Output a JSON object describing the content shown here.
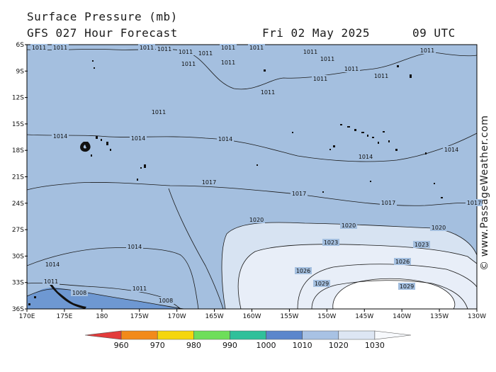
{
  "header": {
    "title": "Surface Pressure (mb)",
    "forecast": "GFS 027 Hour Forecast",
    "date": "Fri 02 May 2025",
    "time": "09 UTC"
  },
  "watermark": "© www.PassageWeather.com",
  "map": {
    "lat_labels": [
      "6S",
      "9S",
      "12S",
      "15S",
      "18S",
      "21S",
      "24S",
      "27S",
      "30S",
      "33S",
      "36S"
    ],
    "lon_labels": [
      "170E",
      "175E",
      "180",
      "175W",
      "170W",
      "165W",
      "160W",
      "155W",
      "150W",
      "145W",
      "140W",
      "135W",
      "130W"
    ],
    "isobars": [
      "1008",
      "1011",
      "1014",
      "1017",
      "1020",
      "1023",
      "1026",
      "1029"
    ],
    "colors": {
      "ocean_main": "#a4bfdf",
      "low_1008": "#6e98d2",
      "high_1020": "#d7e3f2",
      "high_1023": "#e8eef8",
      "high_1029": "#ffffff",
      "land": "#111111"
    }
  },
  "colorbar": {
    "ticks": [
      "960",
      "970",
      "980",
      "990",
      "1000",
      "1010",
      "1020",
      "1030"
    ],
    "colors": [
      "#e33b3b",
      "#f28a1a",
      "#f5d60c",
      "#6ede5a",
      "#30c09a",
      "#5b86cc",
      "#a8c2e4",
      "#dde6f3",
      "#f7f9fc"
    ]
  }
}
